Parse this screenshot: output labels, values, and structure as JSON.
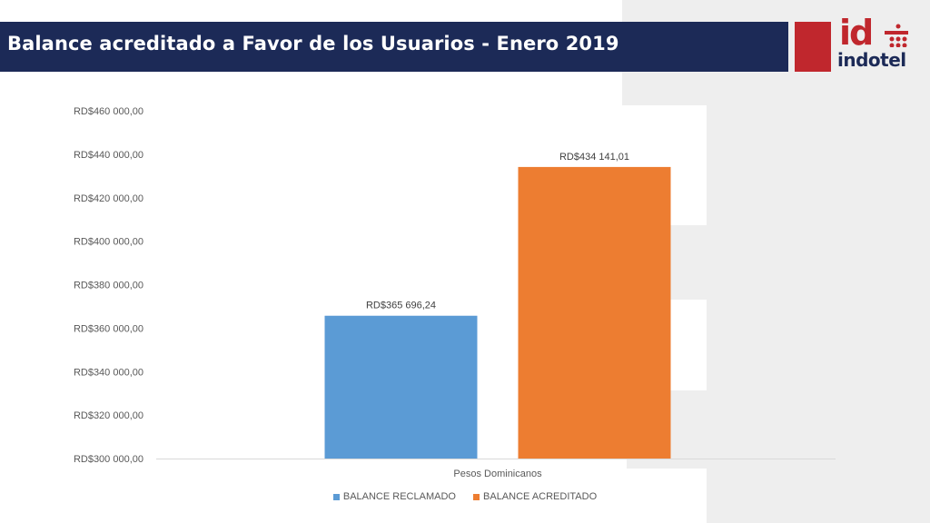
{
  "header": {
    "title": "Balance acreditado a Favor de los Usuarios - Enero 2019"
  },
  "logo": {
    "mark": "id",
    "name": "indotel"
  },
  "colors": {
    "header": "#1c2a57",
    "brand_red": "#c0272d",
    "series_1": "#5b9bd5",
    "series_2": "#ed7d31"
  },
  "chart_data": {
    "type": "bar",
    "categories": [
      "Pesos Dominicanos"
    ],
    "series": [
      {
        "name": "BALANCE RECLAMADO",
        "values": [
          365696.24
        ],
        "label": "RD$365 696,24",
        "color": "#5b9bd5"
      },
      {
        "name": "BALANCE ACREDITADO",
        "values": [
          434141.01
        ],
        "label": "RD$434 141,01",
        "color": "#ed7d31"
      }
    ],
    "ylim": [
      300000,
      460000
    ],
    "yticks": [
      300000,
      320000,
      340000,
      360000,
      380000,
      400000,
      420000,
      440000,
      460000
    ],
    "ytick_labels": [
      "RD$300 000,00",
      "RD$320 000,00",
      "RD$340 000,00",
      "RD$360 000,00",
      "RD$380 000,00",
      "RD$400 000,00",
      "RD$420 000,00",
      "RD$440 000,00",
      "RD$460 000,00"
    ],
    "grid": false,
    "legend": "bottom"
  }
}
